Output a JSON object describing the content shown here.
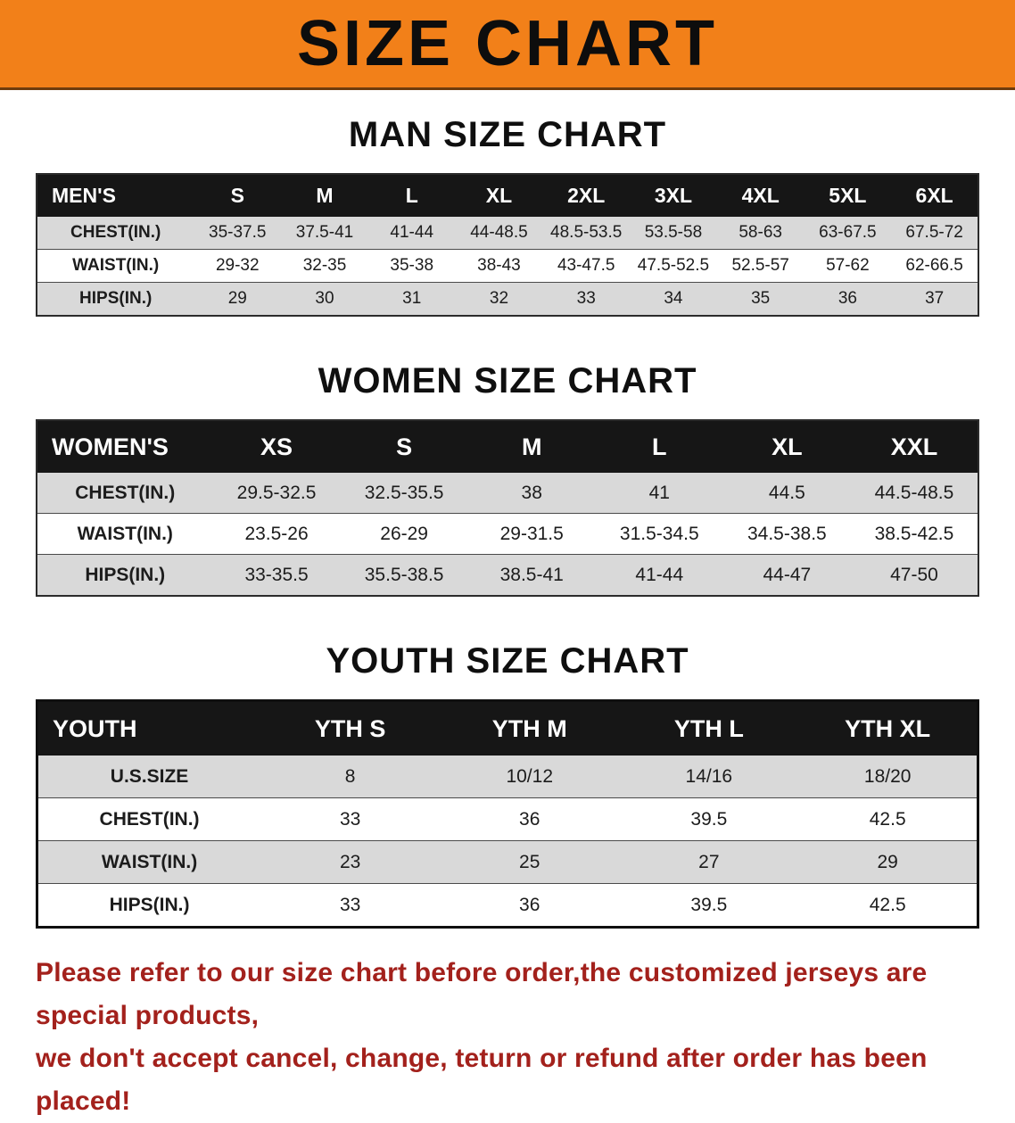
{
  "banner": {
    "title": "SIZE CHART"
  },
  "chart_data": [
    {
      "type": "table",
      "title": "MAN SIZE CHART",
      "columns": [
        "MEN'S",
        "S",
        "M",
        "L",
        "XL",
        "2XL",
        "3XL",
        "4XL",
        "5XL",
        "6XL"
      ],
      "rows": [
        [
          "CHEST(IN.)",
          "35-37.5",
          "37.5-41",
          "41-44",
          "44-48.5",
          "48.5-53.5",
          "53.5-58",
          "58-63",
          "63-67.5",
          "67.5-72"
        ],
        [
          "WAIST(IN.)",
          "29-32",
          "32-35",
          "35-38",
          "38-43",
          "43-47.5",
          "47.5-52.5",
          "52.5-57",
          "57-62",
          "62-66.5"
        ],
        [
          "HIPS(IN.)",
          "29",
          "30",
          "31",
          "32",
          "33",
          "34",
          "35",
          "36",
          "37"
        ]
      ]
    },
    {
      "type": "table",
      "title": "WOMEN SIZE CHART",
      "columns": [
        "WOMEN'S",
        "XS",
        "S",
        "M",
        "L",
        "XL",
        "XXL"
      ],
      "rows": [
        [
          "CHEST(IN.)",
          "29.5-32.5",
          "32.5-35.5",
          "38",
          "41",
          "44.5",
          "44.5-48.5"
        ],
        [
          "WAIST(IN.)",
          "23.5-26",
          "26-29",
          "29-31.5",
          "31.5-34.5",
          "34.5-38.5",
          "38.5-42.5"
        ],
        [
          "HIPS(IN.)",
          "33-35.5",
          "35.5-38.5",
          "38.5-41",
          "41-44",
          "44-47",
          "47-50"
        ]
      ]
    },
    {
      "type": "table",
      "title": "YOUTH SIZE CHART",
      "columns": [
        "YOUTH",
        "YTH S",
        "YTH M",
        "YTH L",
        "YTH XL"
      ],
      "rows": [
        [
          "U.S.SIZE",
          "8",
          "10/12",
          "14/16",
          "18/20"
        ],
        [
          "CHEST(IN.)",
          "33",
          "36",
          "39.5",
          "42.5"
        ],
        [
          "WAIST(IN.)",
          "23",
          "25",
          "27",
          "29"
        ],
        [
          "HIPS(IN.)",
          "33",
          "36",
          "39.5",
          "42.5"
        ]
      ]
    }
  ],
  "footer": {
    "lines": [
      "Please refer to our size chart before order,the customized jerseys are special products,",
      "we don't accept cancel, change, teturn or refund after order has been placed!"
    ]
  },
  "colors": {
    "banner_bg": "#f28019",
    "table_header_bg": "#161616",
    "row_alt_gray": "#d9d9d9",
    "note_red": "#a3211c"
  }
}
